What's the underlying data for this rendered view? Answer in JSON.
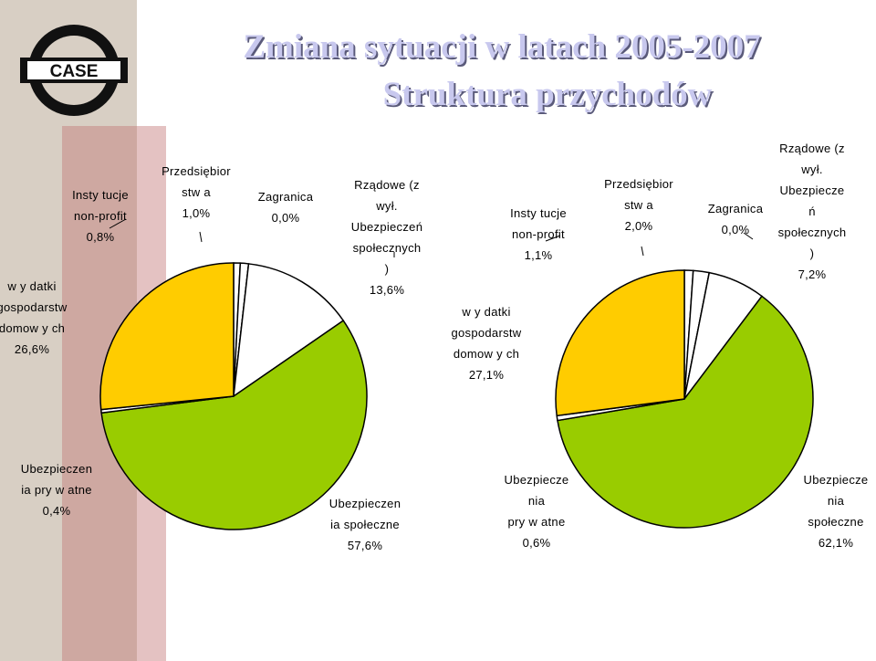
{
  "title_line1": "Zmiana sytuacji w latach 2005-2007",
  "title_line2": "Struktura przychodów",
  "logo_text": "CASE",
  "colors": {
    "households": "#ffcc00",
    "social_insurance": "#99cc00",
    "private_insurance": "#ffffff",
    "outline": "#000000",
    "title_fill": "#c8c8ee",
    "title_shadow": "#5a5a7a"
  },
  "chart_data": [
    {
      "type": "pie",
      "title": "",
      "slices": [
        {
          "lines": [
            "Insty tucje",
            "non-profit",
            "0,8%"
          ],
          "value": 0.8
        },
        {
          "lines": [
            "Przedsiębior",
            "stw a",
            "1,0%"
          ],
          "value": 1.0
        },
        {
          "lines": [
            "Zagranica",
            "0,0%"
          ],
          "value": 0.0
        },
        {
          "lines": [
            "Rządowe (z",
            "wył.",
            "Ubezpieczeń",
            "społecznych",
            ")",
            "13,6%"
          ],
          "value": 13.6
        },
        {
          "lines": [
            "Ubezpieczen",
            "ia społeczne",
            "57,6%"
          ],
          "value": 57.6
        },
        {
          "lines": [
            "Ubezpieczen",
            "ia pry w atne",
            "0,4%"
          ],
          "value": 0.4
        },
        {
          "lines": [
            "w y datki",
            "gospodarstw",
            "domow y ch",
            "26,6%"
          ],
          "value": 26.6
        }
      ]
    },
    {
      "type": "pie",
      "title": "",
      "slices": [
        {
          "lines": [
            "Insty tucje",
            "non-profit",
            "1,1%"
          ],
          "value": 1.1
        },
        {
          "lines": [
            "Przedsiębior",
            "stw a",
            "2,0%"
          ],
          "value": 2.0
        },
        {
          "lines": [
            "Zagranica",
            "0,0%"
          ],
          "value": 0.0
        },
        {
          "lines": [
            "Rządowe (z",
            "wył.",
            "Ubezpiecze",
            "ń",
            "społecznych",
            ")",
            "7,2%"
          ],
          "value": 7.2
        },
        {
          "lines": [
            "Ubezpiecze",
            "nia",
            "społeczne",
            "62,1%"
          ],
          "value": 62.1
        },
        {
          "lines": [
            "Ubezpiecze",
            "nia",
            "pry w atne",
            "0,6%"
          ],
          "value": 0.6
        },
        {
          "lines": [
            "w y datki",
            "gospodarstw",
            "domow y ch",
            "27,1%"
          ],
          "value": 27.1
        }
      ]
    }
  ]
}
